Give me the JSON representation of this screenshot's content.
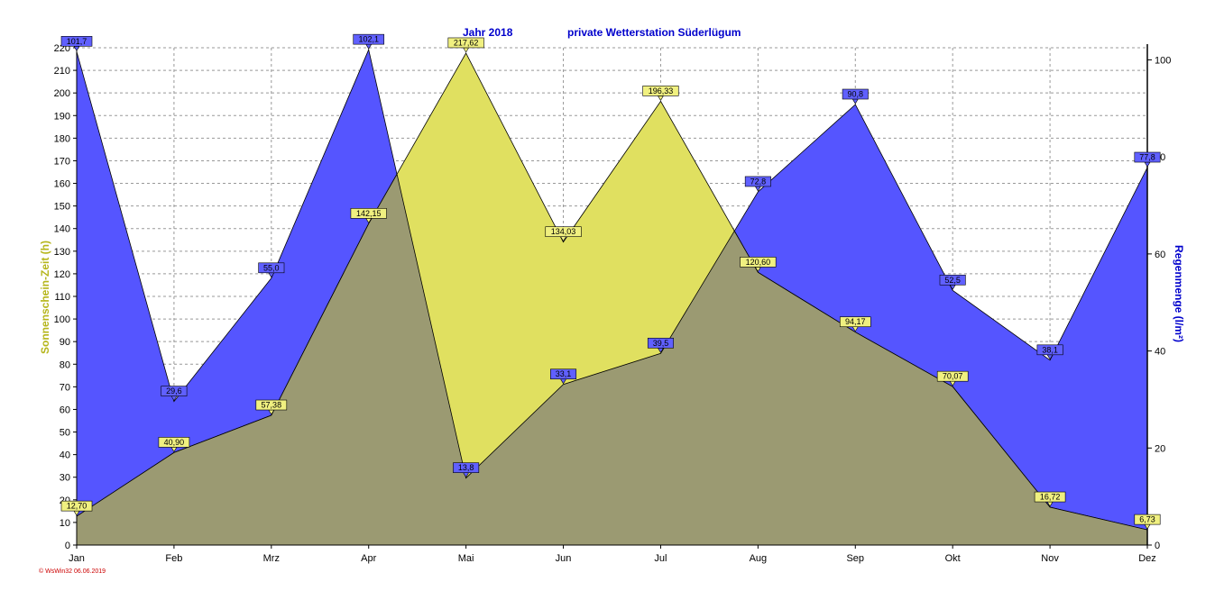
{
  "chart_data": {
    "type": "area",
    "title_left": "Jahr  2018",
    "title_right": "private Wetterstation Süderlügum",
    "categories": [
      "Jan",
      "Feb",
      "Mrz",
      "Apr",
      "Mai",
      "Jun",
      "Jul",
      "Aug",
      "Sep",
      "Okt",
      "Nov",
      "Dez"
    ],
    "series": [
      {
        "name": "Sonnenschein-Zeit",
        "axis": "left",
        "values": [
          12.7,
          40.9,
          57.38,
          142.15,
          217.62,
          134.03,
          196.33,
          120.6,
          94.17,
          70.07,
          16.72,
          6.73
        ],
        "labels": [
          "12,70",
          "40,90",
          "57,38",
          "142,15",
          "217,62",
          "134,03",
          "196,33",
          "120,60",
          "94,17",
          "70,07",
          "16,72",
          "6,73"
        ],
        "color": "#e0e060",
        "label_color": "#f0f080"
      },
      {
        "name": "Regenmenge",
        "axis": "right",
        "values": [
          101.7,
          29.6,
          55.0,
          102.1,
          13.8,
          33.1,
          39.5,
          72.8,
          90.8,
          52.5,
          38.1,
          77.8
        ],
        "labels": [
          "101,7",
          "29,6",
          "55,0",
          "102,1",
          "13,8",
          "33,1",
          "39,5",
          "72,8",
          "90,8",
          "52,5",
          "38,1",
          "77,8"
        ],
        "color": "#5555ff",
        "label_color": "#6060ff"
      }
    ],
    "ylabel_left": "Sonnenschein-Zeit  (h)",
    "ylabel_right": "Regenmenge  (l/m²)",
    "ylim_left": [
      0,
      220
    ],
    "yticks_left": [
      0,
      10,
      20,
      30,
      40,
      50,
      60,
      70,
      80,
      90,
      100,
      110,
      120,
      130,
      140,
      150,
      160,
      170,
      180,
      190,
      200,
      210,
      220
    ],
    "ylim_right": [
      0,
      102.5
    ],
    "yticks_right": [
      0,
      20,
      40,
      60,
      80,
      100
    ],
    "grid": true,
    "colors": {
      "overlap": "#9b9a72",
      "title": "#0000cc",
      "left_axis_label": "#b5b51a",
      "right_axis_label": "#0000cc"
    }
  },
  "footer": "© WsWin32  06.06.2019"
}
